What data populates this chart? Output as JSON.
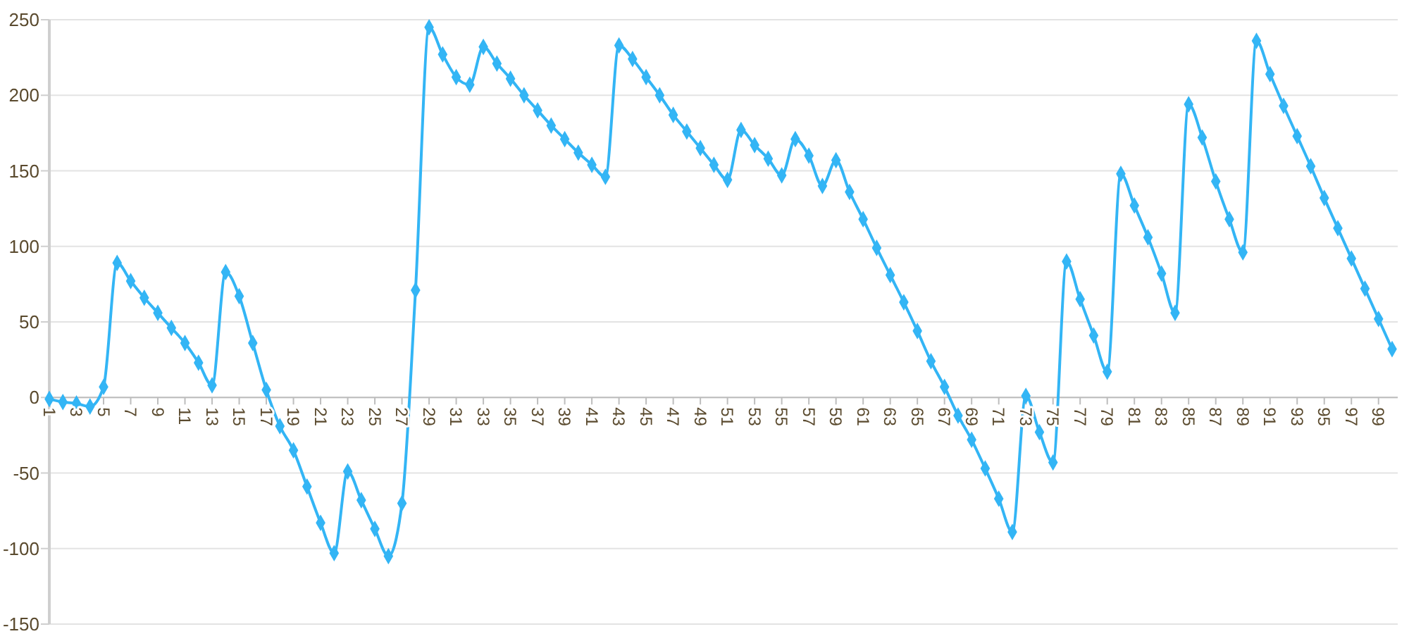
{
  "chart_data": {
    "type": "line",
    "categories": [
      "1",
      null,
      "3",
      null,
      "5",
      null,
      "7",
      null,
      "9",
      null,
      "11",
      null,
      "13",
      null,
      "15",
      null,
      "17",
      null,
      "19",
      null,
      "21",
      null,
      "23",
      null,
      "25",
      null,
      "27",
      null,
      "29",
      null,
      "31",
      null,
      "33",
      null,
      "35",
      null,
      "37",
      null,
      "39",
      null,
      "41",
      null,
      "43",
      null,
      "45",
      null,
      "47",
      null,
      "49",
      null,
      "51",
      null,
      "53",
      null,
      "55",
      null,
      "57",
      null,
      "59",
      null,
      "61",
      null,
      "63",
      null,
      "65",
      null,
      "67",
      null,
      "69",
      null,
      "71",
      null,
      "73",
      null,
      "75",
      null,
      "77",
      null,
      "79",
      null,
      "81",
      null,
      "83",
      null,
      "85",
      null,
      "87",
      null,
      "89",
      null,
      "91",
      null,
      "93",
      null,
      "95",
      null,
      "97",
      null,
      "99",
      null
    ],
    "series": [
      {
        "color": "#33b5f5",
        "values": [
          -1,
          -3,
          -4,
          -6,
          7,
          89,
          77,
          66,
          56,
          46,
          36,
          23,
          8,
          83,
          67,
          36,
          5,
          -19,
          -35,
          -59,
          -83,
          -103,
          -49,
          -68,
          -87,
          -105,
          -70,
          71,
          245,
          227,
          212,
          207,
          232,
          221,
          211,
          200,
          190,
          180,
          171,
          162,
          154,
          146,
          233,
          224,
          212,
          200,
          187,
          176,
          165,
          154,
          144,
          177,
          167,
          158,
          147,
          171,
          160,
          140,
          157,
          136,
          118,
          99,
          81,
          63,
          44,
          24,
          7,
          -12,
          -28,
          -47,
          -67,
          -89,
          1,
          -23,
          -43,
          90,
          65,
          41,
          17,
          148,
          127,
          106,
          82,
          56,
          194,
          172,
          143,
          118,
          96,
          236,
          214,
          193,
          173,
          153,
          132,
          112,
          92,
          72,
          52,
          32
        ]
      }
    ],
    "ylim": [
      -150,
      250
    ],
    "yticks": [
      -150,
      -100,
      -50,
      0,
      50,
      100,
      150,
      200,
      250
    ],
    "grid": "y",
    "marker": "diamond",
    "line_style": "solid"
  }
}
